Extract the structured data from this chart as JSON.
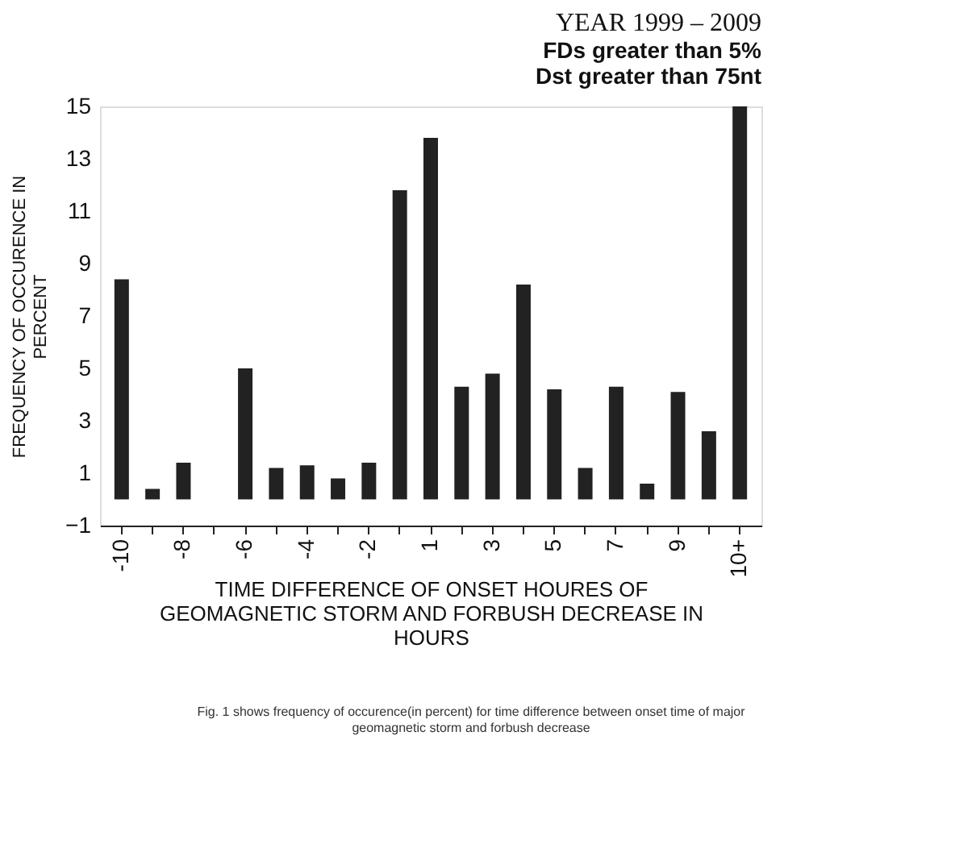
{
  "chart_data": {
    "type": "bar",
    "title": "YEAR 1999 – 2009",
    "subtitle": [
      "FDs greater than  5%",
      "Dst greater than 75nt"
    ],
    "xlabel": [
      "TIME DIFFERENCE OF ONSET HOURES OF",
      "GEOMAGNETIC STORM AND FORBUSH DECREASE IN",
      "HOURS"
    ],
    "ylabel": [
      "FREQUENCY OF OCCURENCE IN",
      "PERCENT"
    ],
    "categories": [
      "-10",
      null,
      "-8",
      null,
      "-6",
      null,
      "-4",
      null,
      "-2",
      null,
      "1",
      null,
      "3",
      null,
      "5",
      null,
      "7",
      null,
      "9",
      null,
      "10+"
    ],
    "values": [
      8.4,
      0.4,
      1.4,
      null,
      5.0,
      1.2,
      1.3,
      0.8,
      1.4,
      11.8,
      13.8,
      4.3,
      4.8,
      8.2,
      4.2,
      1.2,
      4.3,
      0.6,
      4.1,
      2.6,
      15
    ],
    "color": "#222222",
    "ylim": [
      -1,
      15
    ],
    "yticks": [
      -1,
      1,
      3,
      5,
      7,
      9,
      11,
      13,
      15
    ],
    "grid": false,
    "annotations": [
      "Fig.   1 shows frequency of occurence(in percent) for time difference between onset time of major geomagnetic storm and forbush decrease"
    ]
  }
}
